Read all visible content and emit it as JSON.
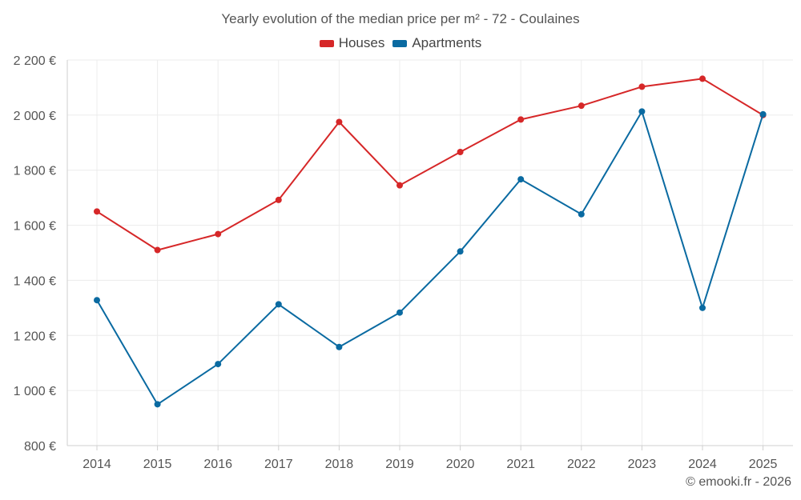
{
  "chart_data": {
    "type": "line",
    "title": "Yearly evolution of the median price per m² - 72 - Coulaines",
    "xlabel": "",
    "ylabel": "",
    "categories": [
      "2014",
      "2015",
      "2016",
      "2017",
      "2018",
      "2019",
      "2020",
      "2021",
      "2022",
      "2023",
      "2024",
      "2025"
    ],
    "y_ticks": [
      {
        "value": 800,
        "label": "800 €"
      },
      {
        "value": 1000,
        "label": "1 000 €"
      },
      {
        "value": 1200,
        "label": "1 200 €"
      },
      {
        "value": 1400,
        "label": "1 400 €"
      },
      {
        "value": 1600,
        "label": "1 600 €"
      },
      {
        "value": 1800,
        "label": "1 800 €"
      },
      {
        "value": 2000,
        "label": "2 000 €"
      },
      {
        "value": 2200,
        "label": "2 200 €"
      }
    ],
    "ylim": [
      800,
      2200
    ],
    "grid": true,
    "legend_position": "top-center",
    "series": [
      {
        "name": "Houses",
        "color": "#d62728",
        "values": [
          1650,
          1510,
          1568,
          1692,
          1975,
          1745,
          1866,
          1984,
          2034,
          2103,
          2132,
          2000
        ]
      },
      {
        "name": "Apartments",
        "color": "#0a6aa1",
        "values": [
          1328,
          950,
          1096,
          1313,
          1158,
          1283,
          1505,
          1767,
          1640,
          2013,
          1300,
          2003
        ]
      }
    ]
  },
  "footer": {
    "credit": "© emooki.fr - 2026"
  }
}
